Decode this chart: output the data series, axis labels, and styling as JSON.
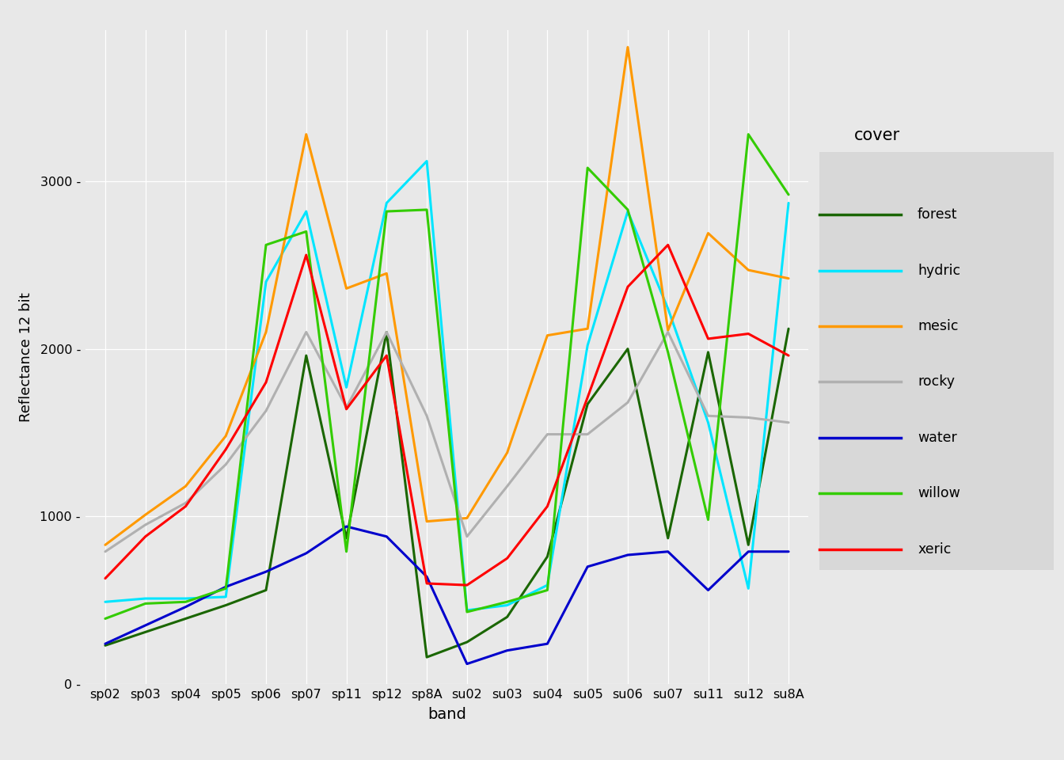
{
  "bands": [
    "sp02",
    "sp03",
    "sp04",
    "sp05",
    "sp06",
    "sp07",
    "sp11",
    "sp12",
    "sp8A",
    "su02",
    "su03",
    "su04",
    "su05",
    "su06",
    "su07",
    "su11",
    "su12",
    "su8A"
  ],
  "series": {
    "forest": {
      "color": "#1a6600",
      "values": [
        230,
        310,
        390,
        470,
        560,
        1960,
        870,
        2100,
        160,
        250,
        400,
        760,
        1670,
        2000,
        870,
        1980,
        830,
        2120
      ]
    },
    "hydric": {
      "color": "#00e5ff",
      "values": [
        490,
        510,
        510,
        520,
        2400,
        2820,
        1770,
        2870,
        3120,
        440,
        470,
        590,
        2020,
        2820,
        2240,
        1560,
        570,
        2870
      ]
    },
    "mesic": {
      "color": "#ff9900",
      "values": [
        830,
        1010,
        1180,
        1480,
        2100,
        3280,
        2360,
        2450,
        970,
        990,
        1380,
        2080,
        2120,
        3800,
        2110,
        2690,
        2470,
        2420
      ]
    },
    "rocky": {
      "color": "#b0b0b0",
      "values": [
        790,
        950,
        1080,
        1310,
        1630,
        2100,
        1650,
        2100,
        1600,
        880,
        1180,
        1490,
        1490,
        1680,
        2100,
        1600,
        1590,
        1560
      ]
    },
    "water": {
      "color": "#0000cc",
      "values": [
        240,
        350,
        460,
        580,
        670,
        780,
        940,
        880,
        640,
        120,
        200,
        240,
        700,
        770,
        790,
        560,
        790,
        790
      ]
    },
    "willow": {
      "color": "#33cc00",
      "values": [
        390,
        480,
        490,
        570,
        2620,
        2700,
        790,
        2820,
        2830,
        430,
        490,
        560,
        3080,
        2830,
        1980,
        980,
        3280,
        2920
      ]
    },
    "xeric": {
      "color": "#ff0000",
      "values": [
        630,
        880,
        1060,
        1400,
        1800,
        2560,
        1640,
        1960,
        600,
        590,
        750,
        1060,
        1710,
        2370,
        2620,
        2060,
        2090,
        1960
      ]
    }
  },
  "xlabel": "band",
  "ylabel": "Reflectance 12 bit",
  "ylim": [
    0,
    3900
  ],
  "yticks": [
    0,
    1000,
    2000,
    3000
  ],
  "ytick_labels": [
    "0",
    "1000",
    "2000",
    "3000"
  ],
  "legend_title": "cover",
  "background_color": "#e8e8e8",
  "grid_color": "#ffffff",
  "linewidth": 2.2,
  "tick_dash": " -"
}
